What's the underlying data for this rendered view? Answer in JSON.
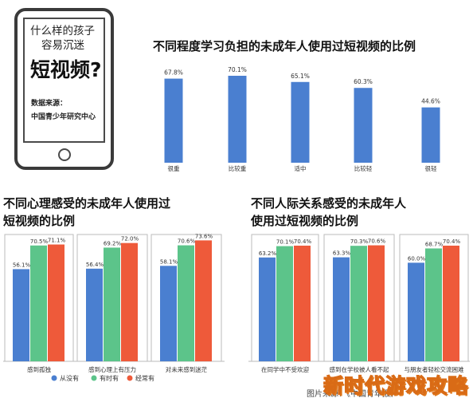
{
  "phone": {
    "question_line1": "什么样的孩子",
    "question_line2": "容易沉迷",
    "title": "短视频?",
    "source_label": "数据来源：",
    "source_name": "中国青少年研究中心"
  },
  "colors": {
    "blue": "#4a7fd0",
    "green": "#5cc48a",
    "red": "#ee5a3a",
    "axis": "#bbbbbb"
  },
  "chart_data": [
    {
      "type": "bar",
      "title": "不同程度学习负担的未成年人使用过短视频的比例",
      "categories": [
        "很重",
        "比较重",
        "适中",
        "比较轻",
        "很轻"
      ],
      "series": [
        {
          "values": [
            67.8,
            70.1,
            65.1,
            60.3,
            44.6
          ]
        }
      ],
      "value_labels": [
        "67.8%",
        "70.1%",
        "65.1%",
        "60.3%",
        "44.6%"
      ],
      "ylim": [
        0,
        75
      ]
    },
    {
      "type": "bar",
      "title_line1": "不同心理感受的未成年人使用过",
      "title_line2": "短视频的比例",
      "categories": [
        "感到孤独",
        "感到心理上有压力",
        "对未来感到迷茫"
      ],
      "series": [
        {
          "name": "从没有",
          "values": [
            56.1,
            56.4,
            58.1
          ],
          "labels": [
            "56.1%",
            "56.4%",
            "58.1%"
          ]
        },
        {
          "name": "有时有",
          "values": [
            70.5,
            69.2,
            70.6
          ],
          "labels": [
            "70.5%",
            "69.2%",
            "70.6%"
          ]
        },
        {
          "name": "经常有",
          "values": [
            71.1,
            72.0,
            73.6
          ],
          "labels": [
            "71.1%",
            "72.0%",
            "73.6%"
          ]
        }
      ],
      "ylim": [
        0,
        75
      ],
      "legend": "bottom"
    },
    {
      "type": "bar",
      "title_line1": "不同人际关系感受的未成年人",
      "title_line2": "使用过短视频的比例",
      "categories": [
        "在同学中不受欢迎",
        "感到在学校被人看不起",
        "与朋友者轻松交流困难"
      ],
      "series": [
        {
          "name": "从没有",
          "values": [
            63.2,
            63.3,
            60.0
          ],
          "labels": [
            "63.2%",
            "63.3%",
            "60.0%"
          ]
        },
        {
          "name": "有时有",
          "values": [
            70.1,
            70.3,
            68.7
          ],
          "labels": [
            "70.1%",
            "70.3%",
            "68.7%"
          ]
        },
        {
          "name": "经常有",
          "values": [
            70.4,
            70.6,
            70.4
          ],
          "labels": [
            "70.4%",
            "70.6%",
            "70.4%"
          ]
        }
      ],
      "ylim": [
        0,
        75
      ]
    }
  ],
  "legend_labels": [
    "从没有",
    "有时有",
    "经常有"
  ],
  "footer": {
    "source_note": "图片来源：《中国青年报》",
    "watermark": "新时代游戏攻略"
  }
}
